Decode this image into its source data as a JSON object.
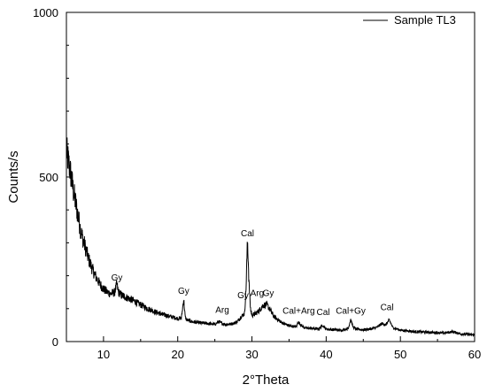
{
  "chart_data": {
    "type": "line",
    "xlabel": "2°Theta",
    "ylabel": "Counts/s",
    "xlim": [
      5,
      60
    ],
    "ylim": [
      0,
      1000
    ],
    "x_ticks": [
      10,
      20,
      30,
      40,
      50,
      60
    ],
    "y_ticks": [
      0,
      500,
      1000
    ],
    "grid": false,
    "legend_position": "top-right",
    "series": [
      {
        "name": "Sample TL3",
        "color": "#000000",
        "x": [
          5,
          5.5,
          6,
          6.5,
          7,
          7.5,
          8,
          8.5,
          9,
          9.5,
          10,
          10.5,
          11,
          11.5,
          11.8,
          12,
          12.5,
          13,
          13.5,
          14,
          14.5,
          15,
          16,
          17,
          18,
          19,
          20,
          20.5,
          20.8,
          21,
          21.2,
          22,
          23,
          24,
          25,
          25.5,
          26,
          26.5,
          27,
          27.5,
          28,
          28.5,
          29,
          29.2,
          29.4,
          29.5,
          29.6,
          29.8,
          30,
          30.5,
          31,
          31.5,
          32,
          32.5,
          33,
          34,
          35,
          36,
          36.2,
          37,
          38,
          39,
          39.5,
          40,
          41,
          42,
          43,
          43.3,
          43.6,
          44,
          45,
          46,
          47,
          47.5,
          48,
          48.5,
          49,
          50,
          52,
          54,
          56,
          57,
          58,
          60
        ],
        "values": [
          580,
          520,
          450,
          390,
          330,
          290,
          250,
          220,
          195,
          175,
          160,
          150,
          145,
          150,
          175,
          150,
          140,
          135,
          130,
          125,
          118,
          112,
          100,
          90,
          82,
          76,
          70,
          72,
          130,
          75,
          66,
          60,
          57,
          55,
          52,
          60,
          55,
          52,
          53,
          55,
          60,
          75,
          85,
          160,
          310,
          250,
          180,
          100,
          80,
          85,
          95,
          110,
          112,
          95,
          75,
          58,
          48,
          45,
          60,
          42,
          40,
          38,
          50,
          38,
          36,
          34,
          40,
          70,
          45,
          38,
          36,
          38,
          45,
          55,
          50,
          65,
          42,
          35,
          30,
          28,
          26,
          30,
          24,
          20
        ]
      }
    ],
    "annotations": [
      {
        "text": "Gy",
        "x": 11.8,
        "y": 185
      },
      {
        "text": "Gy",
        "x": 20.8,
        "y": 145
      },
      {
        "text": "Arg",
        "x": 26.0,
        "y": 88
      },
      {
        "text": "Gy",
        "x": 28.8,
        "y": 132
      },
      {
        "text": "Cal",
        "x": 29.4,
        "y": 320
      },
      {
        "text": "Arg",
        "x": 30.7,
        "y": 138
      },
      {
        "text": "Gy",
        "x": 32.2,
        "y": 138
      },
      {
        "text": "Cal+Arg",
        "x": 36.3,
        "y": 85
      },
      {
        "text": "Cal",
        "x": 39.6,
        "y": 80
      },
      {
        "text": "Cal+Gy",
        "x": 43.3,
        "y": 85
      },
      {
        "text": "Cal",
        "x": 48.2,
        "y": 95
      }
    ]
  }
}
